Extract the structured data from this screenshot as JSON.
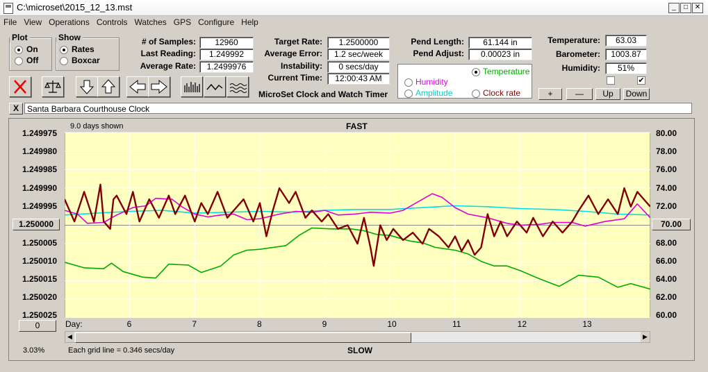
{
  "window": {
    "title": "C:\\microset\\2015_12_13.mst"
  },
  "menu": [
    "File",
    "View",
    "Operations",
    "Controls",
    "Watches",
    "GPS",
    "Configure",
    "Help"
  ],
  "plot_group": {
    "title": "Plot",
    "options": [
      "On",
      "Off"
    ],
    "selected": "On"
  },
  "show_group": {
    "title": "Show",
    "options": [
      "Rates",
      "Boxcar"
    ],
    "selected": "Rates"
  },
  "stats": {
    "samples_label": "# of Samples:",
    "samples": "12960",
    "last_label": "Last Reading:",
    "last": "1.249992",
    "avg_label": "Average Rate:",
    "avg": "1.2499976"
  },
  "rates": {
    "target_label": "Target Rate:",
    "target": "1.2500000",
    "error_label": "Average Error:",
    "error": "1.2 sec/week",
    "instab_label": "Instability:",
    "instab": "0 secs/day",
    "time_label": "Current Time:",
    "time": "12:00:43 AM",
    "app_name": "MicroSet Clock and Watch Timer"
  },
  "pend": {
    "length_label": "Pend Length:",
    "length": "61.144 in",
    "adjust_label": "Pend Adjust:",
    "adjust": "0.00023 in"
  },
  "trace_options": {
    "temperature": "Temperature",
    "humidity": "Humidity",
    "amplitude": "Amplitude",
    "clock_rate": "Clock rate",
    "selected": "Temperature"
  },
  "env": {
    "temp_label": "Temperature:",
    "temp": "63.03",
    "baro_label": "Barometer:",
    "baro": "1003.87",
    "hum_label": "Humidity:",
    "hum": "51%"
  },
  "adjust_buttons": {
    "plus": "+",
    "minus": "—",
    "up": "Up",
    "down": "Down"
  },
  "description": "Santa Barbara Courthouse Clock",
  "close_x": "X",
  "colors": {
    "rate": "#800000",
    "temperature": "#00aa00",
    "humidity": "#dd00dd",
    "amplitude": "#00e0e0",
    "plot_bg": "#ffffc0"
  },
  "chart_data": {
    "type": "line",
    "top_label": "FAST",
    "bottom_label": "SLOW",
    "days_shown": "9.0 days shown",
    "grid_note": "Each grid line = 0.346 secs/day",
    "percent": "3.03%",
    "x_label": "Day:",
    "x_ticks": [
      "6",
      "7",
      "8",
      "9",
      "10",
      "11",
      "12",
      "13"
    ],
    "left_ticks": [
      "1.249975",
      "1.249980",
      "1.249985",
      "1.249990",
      "1.249995",
      "1.250000",
      "1.250005",
      "1.250010",
      "1.250015",
      "1.250020",
      "1.250025"
    ],
    "left_center_button": "1.250000",
    "right_ticks": [
      "80.00",
      "78.00",
      "76.00",
      "74.00",
      "72.00",
      "70.00",
      "68.00",
      "66.00",
      "64.00",
      "62.00",
      "60.00"
    ],
    "right_center_button": "70.00",
    "bottom_left_button": "0",
    "xlim": [
      5,
      14
    ],
    "ylim_left": [
      1.249975,
      1.250025
    ],
    "ylim_right": [
      60,
      80
    ],
    "temperature": {
      "x": [
        5.0,
        5.3,
        5.6,
        5.72,
        5.9,
        6.2,
        6.4,
        6.6,
        6.9,
        7.1,
        7.4,
        7.6,
        7.8,
        8.0,
        8.4,
        8.6,
        8.8,
        9.1,
        9.4,
        9.6,
        9.8,
        10.0,
        10.3,
        10.5,
        10.7,
        11.0,
        11.2,
        11.4,
        11.6,
        11.8,
        12.0,
        12.3,
        12.6,
        12.9,
        13.2,
        13.5,
        13.7,
        14.0
      ],
      "y": [
        66.0,
        65.4,
        65.3,
        65.9,
        65.0,
        64.4,
        64.3,
        65.8,
        65.7,
        64.9,
        65.6,
        66.8,
        67.3,
        67.4,
        67.8,
        68.9,
        69.7,
        69.6,
        69.6,
        69.4,
        69.0,
        68.9,
        68.3,
        68.1,
        67.6,
        67.3,
        66.9,
        66.1,
        65.6,
        65.6,
        65.1,
        64.2,
        63.4,
        64.6,
        64.4,
        63.3,
        63.7,
        63.1
      ]
    },
    "humidity": {
      "x": [
        5.0,
        5.2,
        5.35,
        5.6,
        5.8,
        6.05,
        6.25,
        6.4,
        6.65,
        6.8,
        7.0,
        7.2,
        7.4,
        7.6,
        7.8,
        8.0,
        8.3,
        8.55,
        8.8,
        9.0,
        9.2,
        9.45,
        9.7,
        10.0,
        10.2,
        10.5,
        10.65,
        10.8,
        11.0,
        11.2,
        11.5,
        11.8,
        12.0,
        12.3,
        12.5,
        12.8,
        13.0,
        13.3,
        13.6,
        13.8,
        14.0
      ],
      "y": [
        71.6,
        71.2,
        70.2,
        70.3,
        71.1,
        71.9,
        72.1,
        72.9,
        72.8,
        72.0,
        71.2,
        70.9,
        71.1,
        71.2,
        70.6,
        70.7,
        71.2,
        71.5,
        71.4,
        71.6,
        71.1,
        71.2,
        71.4,
        71.3,
        71.6,
        72.8,
        73.4,
        73.0,
        71.9,
        71.2,
        70.8,
        70.2,
        70.0,
        70.1,
        70.3,
        70.3,
        69.9,
        70.4,
        70.7,
        72.3,
        70.8
      ]
    },
    "amplitude": {
      "x": [
        5.0,
        5.5,
        6.0,
        6.5,
        7.0,
        7.5,
        8.0,
        8.5,
        9.0,
        9.5,
        10.0,
        10.5,
        11.0,
        11.5,
        12.0,
        12.5,
        13.0,
        13.5,
        14.0
      ],
      "y": [
        71.1,
        71.3,
        71.5,
        71.6,
        71.3,
        71.4,
        71.5,
        71.4,
        71.6,
        71.7,
        71.7,
        71.9,
        72.1,
        72.0,
        71.8,
        71.7,
        71.5,
        71.2,
        71.1
      ]
    },
    "rate": {
      "x": [
        5.0,
        5.15,
        5.3,
        5.45,
        5.55,
        5.6,
        5.7,
        5.75,
        5.8,
        5.95,
        6.05,
        6.15,
        6.3,
        6.45,
        6.6,
        6.7,
        6.85,
        7.0,
        7.1,
        7.2,
        7.35,
        7.5,
        7.6,
        7.75,
        7.9,
        8.0,
        8.1,
        8.2,
        8.3,
        8.45,
        8.55,
        8.7,
        8.8,
        8.95,
        9.05,
        9.2,
        9.35,
        9.5,
        9.6,
        9.7,
        9.75,
        9.85,
        9.95,
        10.05,
        10.2,
        10.35,
        10.5,
        10.6,
        10.75,
        10.9,
        11.0,
        11.1,
        11.2,
        11.3,
        11.4,
        11.5,
        11.6,
        11.7,
        11.8,
        11.95,
        12.1,
        12.2,
        12.35,
        12.5,
        12.65,
        12.8,
        12.9,
        13.05,
        13.2,
        13.35,
        13.5,
        13.6,
        13.7,
        13.8,
        13.9,
        14.0
      ],
      "y": [
        1.249993,
        1.249999,
        1.249991,
        1.249999,
        1.249989,
        1.249999,
        1.250001,
        1.249993,
        1.249992,
        1.249997,
        1.249991,
        1.249999,
        1.249993,
        1.249998,
        1.249992,
        1.249997,
        1.249992,
        1.249999,
        1.249994,
        1.249997,
        1.249991,
        1.249998,
        1.249996,
        1.249993,
        1.249999,
        1.249994,
        1.250003,
        1.249996,
        1.24999,
        1.249994,
        1.249991,
        1.249998,
        1.249996,
        1.249999,
        1.249997,
        1.250001,
        1.25,
        1.250005,
        1.249998,
        1.250006,
        1.250011,
        1.25,
        1.250004,
        1.250001,
        1.250004,
        1.250002,
        1.250005,
        1.250001,
        1.250003,
        1.250006,
        1.250003,
        1.250007,
        1.250004,
        1.250008,
        1.250006,
        1.249997,
        1.250003,
        1.249999,
        1.250003,
        1.249999,
        1.250002,
        1.249998,
        1.250003,
        1.249999,
        1.250002,
        1.249999,
        1.249996,
        1.249992,
        1.249997,
        1.249993,
        1.249997,
        1.24999,
        1.249995,
        1.249991,
        1.249993,
        1.249995
      ]
    }
  }
}
